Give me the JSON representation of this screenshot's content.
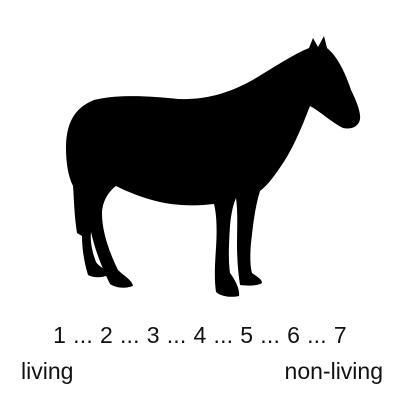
{
  "stimulus": {
    "icon": "horse-silhouette-icon",
    "color": "#000000"
  },
  "rating_scale": {
    "points": [
      "1",
      "2",
      "3",
      "4",
      "5",
      "6",
      "7"
    ],
    "separator": "...",
    "left_anchor": "living",
    "right_anchor": "non-living"
  }
}
